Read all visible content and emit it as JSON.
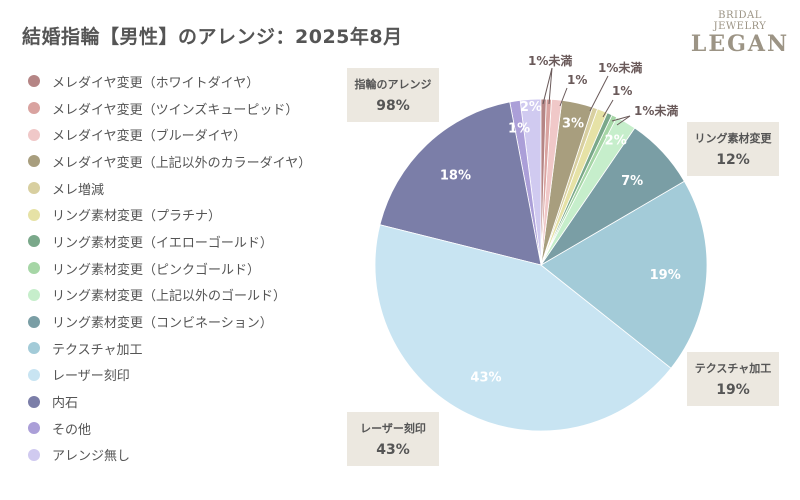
{
  "title": "結婚指輪【男性】のアレンジ：2025年8月",
  "logo": {
    "line1": "BRIDAL JEWELRY",
    "line2": "LEGAN"
  },
  "chart_data": {
    "type": "pie",
    "title": "結婚指輪【男性】のアレンジ：2025年8月",
    "slices": [
      {
        "label": "メレダイヤ変更（ホワイトダイヤ）",
        "value": 0.5,
        "display": "1%未満",
        "color": "#b58585"
      },
      {
        "label": "メレダイヤ変更（ツインズキューピッド）",
        "value": 0.5,
        "display": "1%未満",
        "color": "#d9a3a0"
      },
      {
        "label": "メレダイヤ変更（ブルーダイヤ）",
        "value": 1,
        "display": "1%",
        "color": "#f0c8c8"
      },
      {
        "label": "メレダイヤ変更（上記以外のカラーダイヤ）",
        "value": 3,
        "display": "3%",
        "color": "#a89e7e"
      },
      {
        "label": "メレ増減",
        "value": 0.5,
        "display": "1%未満",
        "color": "#d8cfa0"
      },
      {
        "label": "リング素材変更（プラチナ）",
        "value": 1,
        "display": "1%",
        "color": "#e6e2a6"
      },
      {
        "label": "リング素材変更（イエローゴールド）",
        "value": 0.5,
        "display": "1%未満",
        "color": "#7aa88a"
      },
      {
        "label": "リング素材変更（ピンクゴールド）",
        "value": 0.5,
        "display": "1%未満",
        "color": "#a6d6a6"
      },
      {
        "label": "リング素材変更（上記以外のゴールド）",
        "value": 2,
        "display": "2%",
        "color": "#c6eecb"
      },
      {
        "label": "リング素材変更（コンビネーション）",
        "value": 7,
        "display": "7%",
        "color": "#7a9ea5"
      },
      {
        "label": "テクスチャ加工",
        "value": 19,
        "display": "19%",
        "color": "#a3cbd8"
      },
      {
        "label": "レーザー刻印",
        "value": 43,
        "display": "43%",
        "color": "#c8e4f2"
      },
      {
        "label": "内石",
        "value": 18,
        "display": "18%",
        "color": "#7b7ea8"
      },
      {
        "label": "その他",
        "value": 1,
        "display": "1%",
        "color": "#ab9fd8"
      },
      {
        "label": "アレンジ無し",
        "value": 2,
        "display": "2%",
        "color": "#d0caf0"
      }
    ],
    "callouts": [
      {
        "name": "指輪のアレンジ",
        "value": "98%"
      },
      {
        "name": "リング素材変更",
        "value": "12%"
      },
      {
        "name": "テクスチャ加工",
        "value": "19%"
      },
      {
        "name": "レーザー刻印",
        "value": "43%"
      }
    ],
    "outside_labels": [
      "1%未満",
      "1%",
      "1%未満",
      "1%",
      "1%未満"
    ]
  }
}
